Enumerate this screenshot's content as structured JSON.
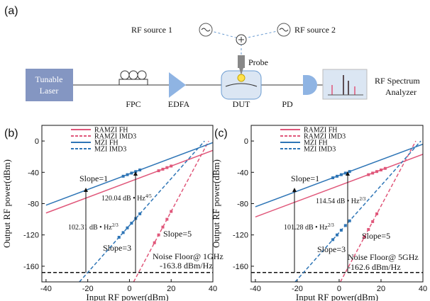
{
  "figure_label": "(a)",
  "diagram": {
    "rf_source_1": "RF source 1",
    "rf_source_2": "RF source 2",
    "probe": "Probe",
    "laser": [
      "Tunable",
      "Laser"
    ],
    "fpc": "FPC",
    "edfa": "EDFA",
    "dut": "DUT",
    "pd": "PD",
    "analyzer": [
      "RF Spectrum",
      "Analyzer"
    ]
  },
  "chart_data": [
    {
      "type": "line",
      "panel": "(b)",
      "x_label": "Input  RF power(dBm)",
      "y_label": "Output RF power(dBm)",
      "xlim": [
        -42,
        40
      ],
      "ylim": [
        -180,
        20
      ],
      "xticks": [
        -40,
        -20,
        0,
        20,
        40
      ],
      "yticks": [
        0,
        -40,
        -80,
        -120,
        -160
      ],
      "noise_floor": -168,
      "series": [
        {
          "name": "RAMZI FH",
          "color": "#e0577a",
          "dashed": false,
          "x": [
            -40,
            40
          ],
          "values": [
            -92,
            -12
          ],
          "points_x": [
            14,
            16,
            18,
            20
          ],
          "points_y": [
            -38,
            -36,
            -34,
            -32
          ]
        },
        {
          "name": "RAMZI IMD3",
          "color": "#e0577a",
          "dashed": true,
          "x": [
            2,
            38
          ],
          "values": [
            -180,
            0
          ],
          "points_x": [
            12,
            14,
            16,
            18,
            20
          ],
          "points_y": [
            -130,
            -120,
            -110,
            -100,
            -90
          ]
        },
        {
          "name": "MZI FH",
          "color": "#2e75b6",
          "dashed": false,
          "x": [
            -40,
            40
          ],
          "values": [
            -82,
            -2
          ],
          "points_x": [
            -3,
            -1,
            1,
            3,
            5
          ],
          "points_y": [
            -45,
            -43,
            -41,
            -39,
            -37
          ]
        },
        {
          "name": "MZI IMD3",
          "color": "#2e75b6",
          "dashed": true,
          "x": [
            -24,
            36
          ],
          "values": [
            -180,
            0
          ],
          "points_x": [
            -5,
            -3,
            -1,
            1,
            3,
            5
          ],
          "points_y": [
            -123,
            -117,
            -111,
            -105,
            -99,
            -93
          ]
        }
      ],
      "annotations": [
        {
          "text": "Slope=1"
        },
        {
          "text": "120.04 dB • Hz",
          "sup": "4/5"
        },
        {
          "text": "102.31 dB • Hz",
          "sup": "2/3"
        },
        {
          "text": "Slope=3"
        },
        {
          "text": "Slope=5"
        },
        {
          "text": "Noise Floor@ 1GHz"
        },
        {
          "text": "-163.8 dBm/Hz"
        }
      ]
    },
    {
      "type": "line",
      "panel": "(c)",
      "x_label": "Input  RF power(dBm)",
      "y_label": "Output RF power(dBm)",
      "xlim": [
        -42,
        40
      ],
      "ylim": [
        -180,
        20
      ],
      "xticks": [
        -40,
        -20,
        0,
        20,
        40
      ],
      "yticks": [
        0,
        -40,
        -80,
        -120,
        -160
      ],
      "noise_floor": -168,
      "series": [
        {
          "name": "RAMZI FH",
          "color": "#e0577a",
          "dashed": false,
          "x": [
            -40,
            40
          ],
          "values": [
            -97,
            -17
          ],
          "points_x": [
            14,
            16,
            18,
            20,
            22
          ],
          "points_y": [
            -43,
            -41,
            -39,
            -37,
            -35
          ]
        },
        {
          "name": "RAMZI IMD3",
          "color": "#e0577a",
          "dashed": true,
          "x": [
            0.6,
            36.6
          ],
          "values": [
            -180,
            0
          ],
          "points_x": [
            12,
            14,
            16,
            18
          ],
          "points_y": [
            -123,
            -113,
            -103,
            -93
          ]
        },
        {
          "name": "MZI FH",
          "color": "#2e75b6",
          "dashed": false,
          "x": [
            -40,
            40
          ],
          "values": [
            -84,
            -4
          ],
          "points_x": [
            -3,
            -1,
            1,
            3,
            5
          ],
          "points_y": [
            -47,
            -45,
            -43,
            -41,
            -39
          ]
        },
        {
          "name": "MZI IMD3",
          "color": "#2e75b6",
          "dashed": true,
          "x": [
            -21,
            39
          ],
          "values": [
            -180,
            0
          ],
          "points_x": [
            -3,
            -1,
            1,
            3,
            5
          ],
          "points_y": [
            -126,
            -120,
            -114,
            -108,
            -102
          ]
        }
      ],
      "annotations": [
        {
          "text": "Slope=1"
        },
        {
          "text": "114.54 dB • Hz",
          "sup": "2/3"
        },
        {
          "text": "101.28 dB • Hz",
          "sup": "2/3"
        },
        {
          "text": "Slope=3"
        },
        {
          "text": "Slope=5"
        },
        {
          "text": "Noise Floor@ 5GHz"
        },
        {
          "text": "-162.6 dBm/Hz"
        }
      ]
    }
  ]
}
